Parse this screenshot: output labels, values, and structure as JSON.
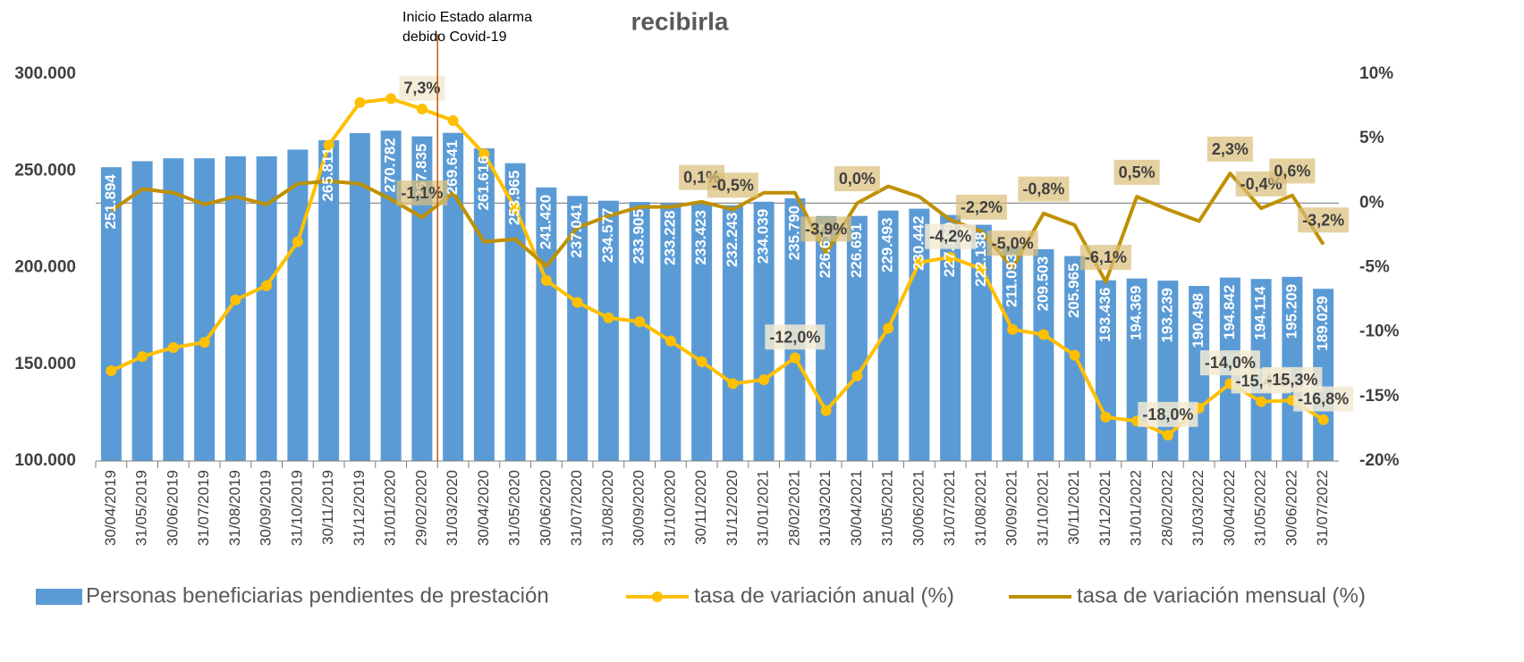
{
  "chart_data": {
    "type": "bar",
    "title": "recibirla",
    "annotation": [
      "Inicio Estado alarma",
      "debido Covid-19"
    ],
    "categories": [
      "30/04/2019",
      "31/05/2019",
      "30/06/2019",
      "31/07/2019",
      "31/08/2019",
      "30/09/2019",
      "31/10/2019",
      "30/11/2019",
      "31/12/2019",
      "31/01/2020",
      "29/02/2020",
      "31/03/2020",
      "30/04/2020",
      "31/05/2020",
      "30/06/2020",
      "31/07/2020",
      "31/08/2020",
      "30/09/2020",
      "31/10/2020",
      "30/11/2020",
      "31/12/2020",
      "31/01/2021",
      "28/02/2021",
      "31/03/2021",
      "30/04/2021",
      "31/05/2021",
      "30/06/2021",
      "31/07/2021",
      "31/08/2021",
      "30/09/2021",
      "31/10/2021",
      "30/11/2021",
      "31/12/2021",
      "31/01/2022",
      "28/02/2022",
      "31/03/2022",
      "30/04/2022",
      "31/05/2022",
      "30/06/2022",
      "31/07/2022"
    ],
    "ylim": [
      100000,
      300000
    ],
    "yticks": [
      {
        "value": 100000,
        "label": "100.000"
      },
      {
        "value": 150000,
        "label": "150.000"
      },
      {
        "value": 200000,
        "label": "200.000"
      },
      {
        "value": 250000,
        "label": "250.000"
      },
      {
        "value": 300000,
        "label": "300.000"
      }
    ],
    "y2lim": [
      -20,
      10
    ],
    "y2ticks": [
      {
        "value": -20,
        "label": "-20%"
      },
      {
        "value": -15,
        "label": "-15%"
      },
      {
        "value": -10,
        "label": "-10%"
      },
      {
        "value": -5,
        "label": "-5%"
      },
      {
        "value": 0,
        "label": "0%"
      },
      {
        "value": 5,
        "label": "5%"
      },
      {
        "value": 10,
        "label": "10%"
      }
    ],
    "grid": false,
    "legend": "bottom",
    "series": [
      {
        "name": "Personas beneficiarias pendientes de prestación",
        "type": "bar",
        "color": "#5B9BD5",
        "values": [
          251894,
          255000,
          256500,
          256500,
          257500,
          257500,
          261000,
          265811,
          269500,
          270782,
          267835,
          269641,
          261616,
          253965,
          241420,
          237041,
          234577,
          233905,
          233228,
          233423,
          232243,
          234039,
          235790,
          226617,
          226691,
          229493,
          230442,
          227199,
          222138,
          211093,
          209503,
          205965,
          193436,
          194369,
          193239,
          190498,
          194842,
          194114,
          195209,
          189029
        ],
        "value_labels": [
          "251.894",
          null,
          null,
          null,
          null,
          null,
          null,
          "265.811",
          null,
          "270.782",
          "267.835",
          "269.641",
          "261.616",
          "253.965",
          "241.420",
          "237.041",
          "234.577",
          "233.905",
          "233.228",
          "233.423",
          "232.243",
          "234.039",
          "235.790",
          "226.617",
          "226.691",
          "229.493",
          "230.442",
          "227.199",
          "222.138",
          "211.093",
          "209.503",
          "205.965",
          "193.436",
          "194.369",
          "193.239",
          "190.498",
          "194.842",
          "194.114",
          "195.209",
          "189.029"
        ]
      },
      {
        "name": "tasa de variación anual (%)",
        "type": "line",
        "axis": "y2",
        "color": "#FFC000",
        "marker": true,
        "values": [
          -13.0,
          -11.9,
          -11.2,
          -10.8,
          -7.5,
          -6.4,
          -3.0,
          4.5,
          7.8,
          8.1,
          7.3,
          6.4,
          3.8,
          -0.4,
          -6.0,
          -7.7,
          -8.9,
          -9.2,
          -10.7,
          -12.3,
          -14.0,
          -13.7,
          -12.0,
          -16.1,
          -13.4,
          -9.7,
          -4.6,
          -4.2,
          -5.1,
          -9.8,
          -10.2,
          -11.8,
          -16.6,
          -16.9,
          -18.0,
          -15.9,
          -14.0,
          -15.4,
          -15.3,
          -16.8
        ],
        "value_labels": [
          null,
          null,
          null,
          null,
          null,
          null,
          null,
          null,
          null,
          null,
          "7,3%",
          null,
          null,
          null,
          null,
          null,
          null,
          null,
          null,
          null,
          null,
          null,
          "-12,0%",
          null,
          null,
          null,
          null,
          "-4,2%",
          null,
          null,
          null,
          null,
          null,
          null,
          "-18,0%",
          null,
          "-14,0%",
          "-15,4%",
          "-15,3%",
          "-16,8%"
        ]
      },
      {
        "name": "tasa de variación mensual (%)",
        "type": "line",
        "axis": "y2",
        "color": "#BF9000",
        "marker": false,
        "values": [
          -0.6,
          1.1,
          0.8,
          -0.1,
          0.5,
          -0.1,
          1.5,
          1.7,
          1.5,
          0.3,
          -1.1,
          0.8,
          -3.0,
          -2.8,
          -4.9,
          -1.9,
          -1.0,
          -0.3,
          -0.3,
          0.1,
          -0.5,
          0.8,
          0.8,
          -3.9,
          0.0,
          1.3,
          0.5,
          -1.3,
          -2.2,
          -5.0,
          -0.8,
          -1.7,
          -6.1,
          0.5,
          -0.5,
          -1.4,
          2.3,
          -0.4,
          0.6,
          -3.2
        ],
        "value_labels": [
          null,
          null,
          null,
          null,
          null,
          null,
          null,
          null,
          null,
          null,
          "-1,1%",
          null,
          null,
          null,
          null,
          null,
          null,
          null,
          null,
          "0,1%",
          "-0,5%",
          null,
          null,
          "-3,9%",
          "0,0%",
          null,
          null,
          null,
          "-2,2%",
          "-5,0%",
          "-0,8%",
          null,
          "-6,1%",
          "0,5%",
          null,
          null,
          "2,3%",
          "-0,4%",
          "0,6%",
          "-3,2%"
        ]
      }
    ]
  }
}
